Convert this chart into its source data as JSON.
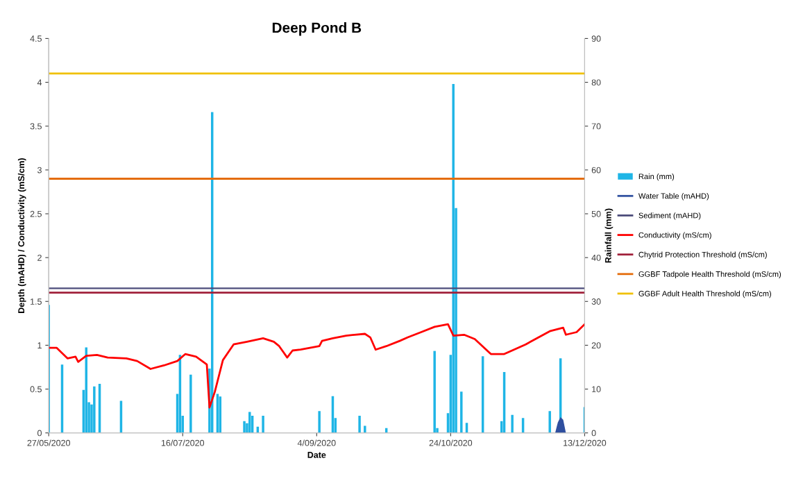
{
  "chart_data": {
    "type": "line",
    "title": "Deep Pond B",
    "xlabel": "Date",
    "ylabel": "Depth (mAHD) / Conductivity (mS/cm)",
    "y2label": "Rainfall (mm)",
    "xlim": [
      "2020-05-27",
      "2020-12-13"
    ],
    "xticks": [
      {
        "value": "2020-05-27",
        "label": "27/05/2020"
      },
      {
        "value": "2020-07-16",
        "label": "16/07/2020"
      },
      {
        "value": "2020-09-04",
        "label": "4/09/2020"
      },
      {
        "value": "2020-10-24",
        "label": "24/10/2020"
      },
      {
        "value": "2020-12-13",
        "label": "13/12/2020"
      }
    ],
    "ylim": [
      0,
      4.5
    ],
    "yticks": [
      0,
      0.5,
      1,
      1.5,
      2,
      2.5,
      3,
      3.5,
      4,
      4.5
    ],
    "y2lim": [
      0,
      90
    ],
    "y2ticks": [
      0,
      10,
      20,
      30,
      40,
      50,
      60,
      70,
      80,
      90
    ],
    "grid": false,
    "legend": "right",
    "series": [
      {
        "name": "Rain (mm)",
        "type": "bar",
        "axis": "y2",
        "color": "#1fb5e6",
        "x": [
          "2020-05-27",
          "2020-06-01",
          "2020-06-09",
          "2020-06-10",
          "2020-06-11",
          "2020-06-12",
          "2020-06-13",
          "2020-06-15",
          "2020-06-23",
          "2020-07-14",
          "2020-07-15",
          "2020-07-16",
          "2020-07-19",
          "2020-07-26",
          "2020-07-27",
          "2020-07-29",
          "2020-07-30",
          "2020-08-08",
          "2020-08-09",
          "2020-08-10",
          "2020-08-11",
          "2020-08-13",
          "2020-08-15",
          "2020-09-05",
          "2020-09-10",
          "2020-09-11",
          "2020-09-20",
          "2020-09-22",
          "2020-09-30",
          "2020-10-18",
          "2020-10-19",
          "2020-10-23",
          "2020-10-24",
          "2020-10-25",
          "2020-10-26",
          "2020-10-28",
          "2020-10-30",
          "2020-11-05",
          "2020-11-12",
          "2020-11-13",
          "2020-11-16",
          "2020-11-20",
          "2020-11-30",
          "2020-12-04",
          "2020-12-13"
        ],
        "values": [
          29.2,
          15.6,
          9.8,
          19.5,
          7.0,
          6.5,
          10.6,
          11.2,
          7.3,
          8.9,
          17.8,
          3.9,
          13.3,
          14.7,
          73.2,
          8.9,
          8.3,
          2.7,
          2.2,
          4.8,
          3.9,
          1.4,
          3.9,
          5.0,
          8.4,
          3.4,
          3.9,
          1.6,
          1.1,
          18.7,
          1.1,
          4.5,
          17.8,
          79.6,
          51.3,
          9.4,
          2.3,
          17.5,
          2.7,
          13.9,
          4.1,
          3.4,
          5.0,
          17.0,
          5.9
        ]
      },
      {
        "name": "Water Table (mAHD)",
        "type": "area",
        "color": "#2f4f9f",
        "x": [
          "2020-12-02",
          "2020-12-03",
          "2020-12-04",
          "2020-12-05",
          "2020-12-06"
        ],
        "values": [
          0,
          0.12,
          0.18,
          0.15,
          0
        ]
      },
      {
        "name": "Sediment (mAHD)",
        "color": "#4b4b7a",
        "x": [
          "2020-05-27",
          "2020-12-13"
        ],
        "values": [
          1.65,
          1.65
        ]
      },
      {
        "name": "Conductivity (mS/cm)",
        "color": "#ff0000",
        "x": [
          "2020-05-27",
          "2020-05-30",
          "2020-06-03",
          "2020-06-06",
          "2020-06-07",
          "2020-06-10",
          "2020-06-14",
          "2020-06-18",
          "2020-06-25",
          "2020-06-29",
          "2020-07-04",
          "2020-07-09",
          "2020-07-14",
          "2020-07-17",
          "2020-07-21",
          "2020-07-25",
          "2020-07-26",
          "2020-07-28",
          "2020-07-31",
          "2020-08-04",
          "2020-08-09",
          "2020-08-15",
          "2020-08-19",
          "2020-08-21",
          "2020-08-24",
          "2020-08-26",
          "2020-08-29",
          "2020-09-05",
          "2020-09-06",
          "2020-09-10",
          "2020-09-15",
          "2020-09-22",
          "2020-09-24",
          "2020-09-26",
          "2020-09-30",
          "2020-10-05",
          "2020-10-08",
          "2020-10-13",
          "2020-10-18",
          "2020-10-23",
          "2020-10-25",
          "2020-10-29",
          "2020-11-02",
          "2020-11-08",
          "2020-11-13",
          "2020-11-21",
          "2020-11-30",
          "2020-12-05",
          "2020-12-06",
          "2020-12-10",
          "2020-12-13"
        ],
        "values": [
          0.97,
          0.97,
          0.85,
          0.87,
          0.81,
          0.88,
          0.89,
          0.86,
          0.85,
          0.82,
          0.73,
          0.77,
          0.82,
          0.9,
          0.87,
          0.78,
          0.29,
          0.47,
          0.83,
          1.01,
          1.04,
          1.08,
          1.04,
          0.99,
          0.86,
          0.94,
          0.95,
          0.99,
          1.05,
          1.08,
          1.11,
          1.13,
          1.09,
          0.95,
          0.99,
          1.05,
          1.09,
          1.15,
          1.21,
          1.24,
          1.11,
          1.12,
          1.07,
          0.9,
          0.9,
          1.01,
          1.16,
          1.2,
          1.12,
          1.15,
          1.24
        ]
      }
    ],
    "ref_lines": [
      {
        "axis": "y",
        "value": 1.6,
        "label": "Chytrid Protection Threshold (mS/cm)",
        "color": "#a0203a"
      },
      {
        "axis": "y",
        "value": 2.9,
        "label": "GGBF Tadpole Health Threshold (mS/cm)",
        "color": "#e46c0a"
      },
      {
        "axis": "y",
        "value": 4.1,
        "label": "GGBF Adult Health Threshold (mS/cm)",
        "color": "#f0c000"
      }
    ]
  }
}
